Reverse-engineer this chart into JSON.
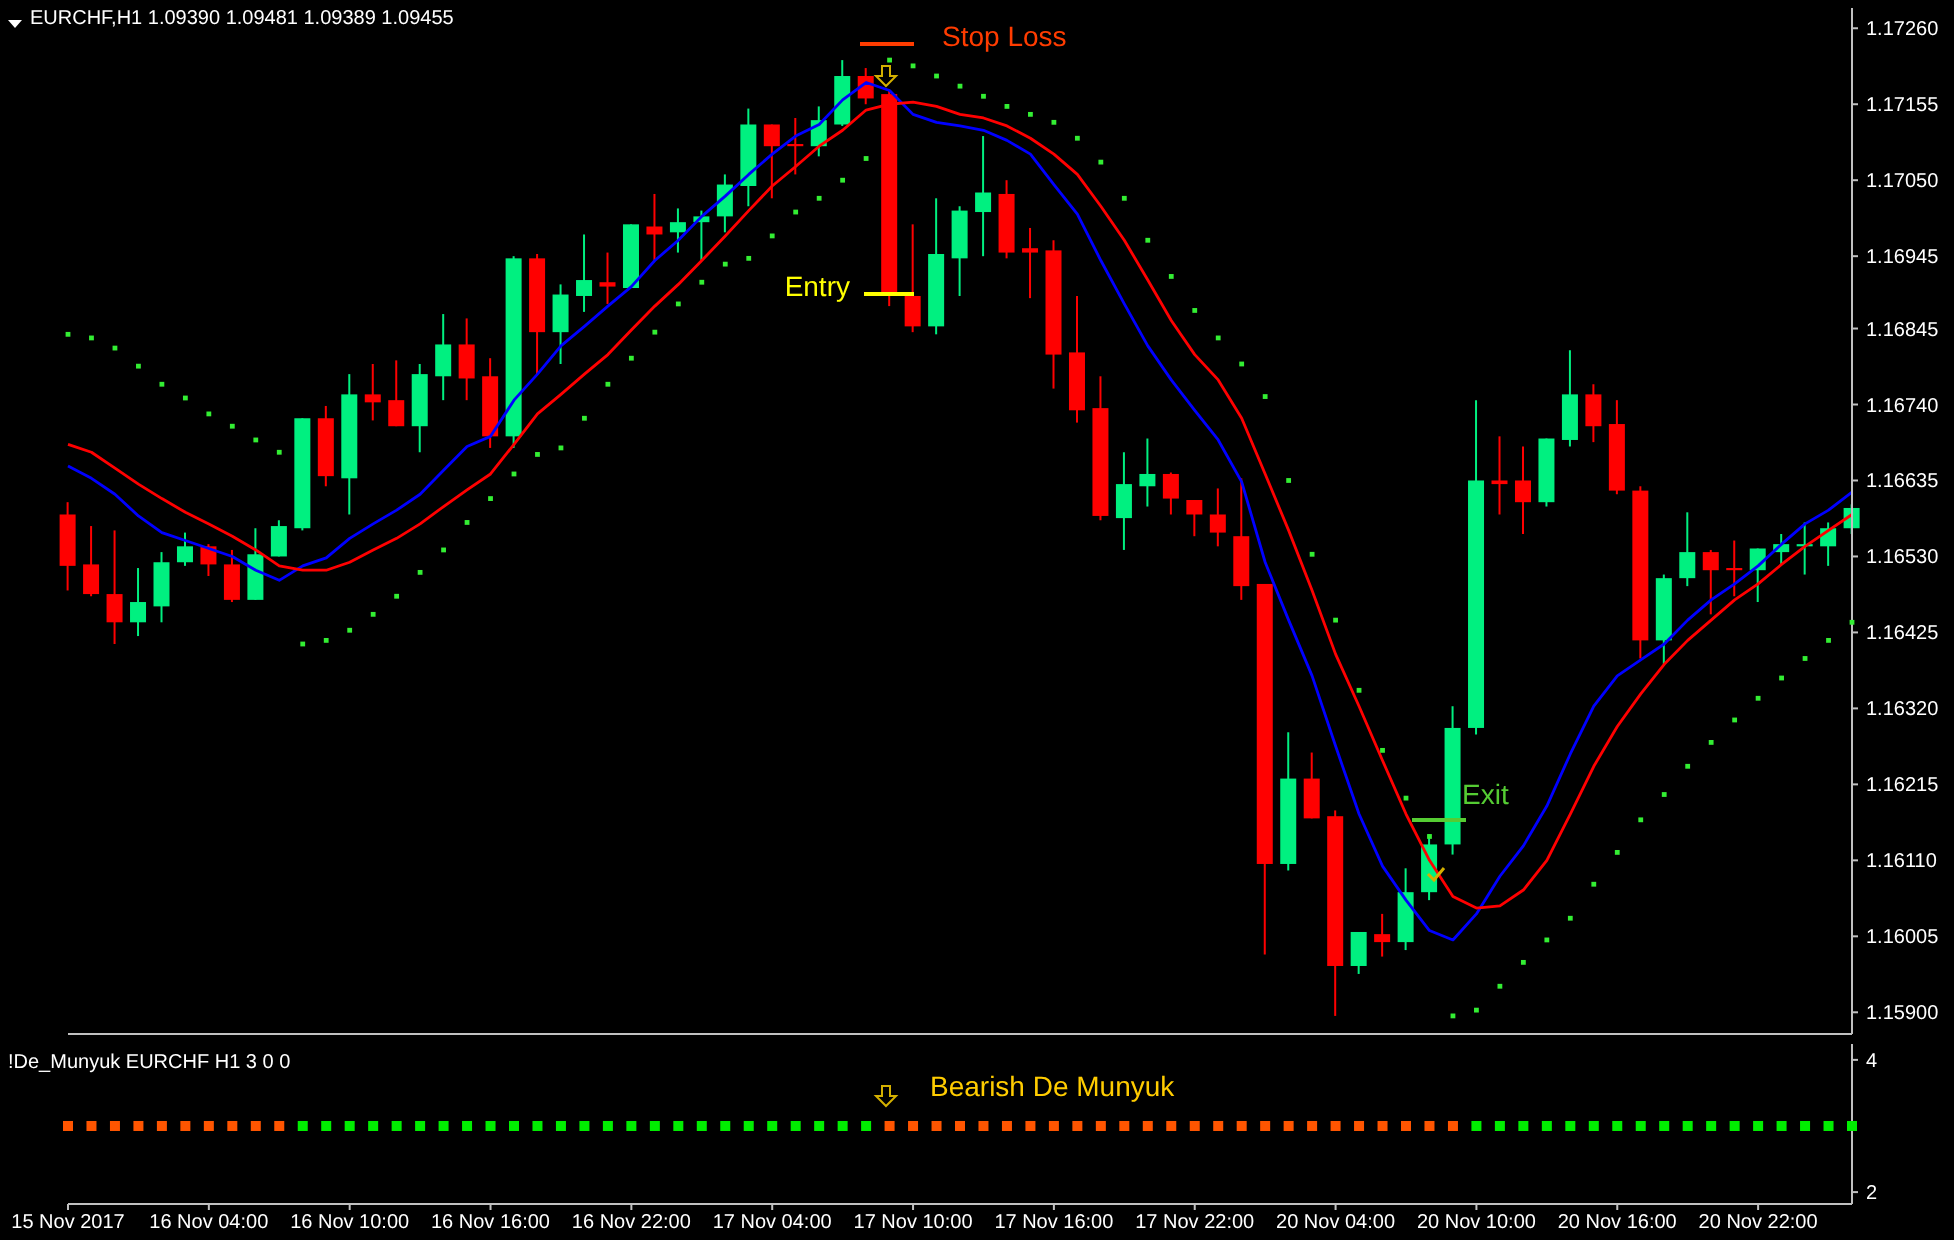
{
  "chart_data": [
    {
      "type": "candlestick",
      "title": "EURCHF,H1  1.09390 1.09481 1.09389 1.09455",
      "categories": [
        null,
        null,
        null,
        null,
        null,
        null,
        null,
        null,
        null,
        null,
        null,
        null,
        null,
        null,
        null,
        null,
        null,
        null,
        null,
        null,
        null,
        null,
        null,
        null,
        null,
        null,
        null,
        null,
        null,
        null,
        null,
        null,
        null,
        null,
        null,
        null,
        null,
        null,
        null,
        null,
        null,
        null,
        null,
        null,
        null,
        null,
        null,
        null,
        null,
        null,
        null,
        null,
        null,
        null,
        null,
        null,
        null,
        null,
        null,
        null,
        null,
        null,
        null,
        null,
        null,
        null,
        null,
        null,
        null,
        null,
        null,
        null,
        null,
        null,
        null,
        null,
        null
      ],
      "ohlc": [
        [
          1.16588,
          1.16605,
          1.16483,
          1.16517
        ],
        [
          1.16519,
          1.16572,
          1.16475,
          1.16478
        ],
        [
          1.16478,
          1.16566,
          1.16409,
          1.16439
        ],
        [
          1.16439,
          1.16514,
          1.1642,
          1.16467
        ],
        [
          1.16461,
          1.16536,
          1.16439,
          1.16522
        ],
        [
          1.16522,
          1.16563,
          1.16517,
          1.16544
        ],
        [
          1.16544,
          1.16547,
          1.16503,
          1.16519
        ],
        [
          1.16519,
          1.16539,
          1.16467,
          1.1647
        ],
        [
          1.1647,
          1.16569,
          1.1647,
          1.16533
        ],
        [
          1.1653,
          1.1658,
          1.1653,
          1.16572
        ],
        [
          1.16569,
          1.16721,
          1.16566,
          1.16721
        ],
        [
          1.16721,
          1.16738,
          1.16627,
          1.16641
        ],
        [
          1.16638,
          1.16782,
          1.16588,
          1.16754
        ],
        [
          1.16754,
          1.16796,
          1.16718,
          1.16743
        ],
        [
          1.16746,
          1.16801,
          1.1671,
          1.1671
        ],
        [
          1.1671,
          1.16796,
          1.16674,
          1.16782
        ],
        [
          1.16779,
          1.16865,
          1.16746,
          1.16823
        ],
        [
          1.16823,
          1.16859,
          1.16746,
          1.16776
        ],
        [
          1.16779,
          1.16804,
          1.1668,
          1.16696
        ],
        [
          1.16696,
          1.16945,
          1.1668,
          1.16942
        ],
        [
          1.16942,
          1.16948,
          1.16782,
          1.1684
        ],
        [
          1.1684,
          1.16906,
          1.16796,
          1.16892
        ],
        [
          1.1689,
          1.16975,
          1.16868,
          1.16912
        ],
        [
          1.16909,
          1.1695,
          1.16879,
          1.16903
        ],
        [
          1.16901,
          1.16989,
          1.16901,
          1.16989
        ],
        [
          1.16986,
          1.17031,
          1.16939,
          1.16975
        ],
        [
          1.16978,
          1.17011,
          1.1695,
          1.16992
        ],
        [
          1.16992,
          1.17008,
          1.16939,
          1.17
        ],
        [
          1.17,
          1.17058,
          1.16978,
          1.17044
        ],
        [
          1.17042,
          1.17149,
          1.17014,
          1.17127
        ],
        [
          1.17127,
          1.17127,
          1.17025,
          1.17097
        ],
        [
          1.171,
          1.17136,
          1.17058,
          1.17097
        ],
        [
          1.17097,
          1.17152,
          1.17083,
          1.17133
        ],
        [
          1.17127,
          1.17216,
          1.17125,
          1.17194
        ],
        [
          1.17194,
          1.17205,
          1.17155,
          1.17163
        ],
        [
          1.17169,
          1.17174,
          1.16876,
          1.1689
        ],
        [
          1.1689,
          1.16989,
          1.1684,
          1.16848
        ],
        [
          1.16848,
          1.17025,
          1.16837,
          1.16948
        ],
        [
          1.16942,
          1.17014,
          1.1689,
          1.17008
        ],
        [
          1.17006,
          1.17111,
          1.16945,
          1.17033
        ],
        [
          1.17031,
          1.1705,
          1.16942,
          1.1695
        ],
        [
          1.16956,
          1.16984,
          1.16887,
          1.1695
        ],
        [
          1.16953,
          1.16967,
          1.16762,
          1.16809
        ],
        [
          1.16812,
          1.1689,
          1.16715,
          1.16732
        ],
        [
          1.16735,
          1.16779,
          1.1658,
          1.16586
        ],
        [
          1.16583,
          1.16674,
          1.16539,
          1.1663
        ],
        [
          1.16627,
          1.16693,
          1.16599,
          1.16644
        ],
        [
          1.16644,
          1.16646,
          1.16588,
          1.1661
        ],
        [
          1.16608,
          1.16608,
          1.16558,
          1.16588
        ],
        [
          1.16588,
          1.16624,
          1.16544,
          1.16563
        ],
        [
          1.16558,
          1.16638,
          1.1647,
          1.16489
        ],
        [
          1.16492,
          1.16492,
          1.1598,
          1.16105
        ],
        [
          1.16105,
          1.16287,
          1.16096,
          1.16223
        ],
        [
          1.16223,
          1.16259,
          1.16168,
          1.16168
        ],
        [
          1.16171,
          1.16179,
          1.15895,
          1.15964
        ],
        [
          1.15964,
          1.16011,
          1.15953,
          1.16011
        ],
        [
          1.16008,
          1.16036,
          1.15977,
          1.15997
        ],
        [
          1.15997,
          1.16099,
          1.15986,
          1.16066
        ],
        [
          1.16066,
          1.16146,
          1.16055,
          1.16132
        ],
        [
          1.16132,
          1.16323,
          1.16118,
          1.16293
        ],
        [
          1.16293,
          1.16746,
          1.16284,
          1.16635
        ],
        [
          1.16635,
          1.16696,
          1.16588,
          1.1663
        ],
        [
          1.16635,
          1.16682,
          1.16561,
          1.16605
        ],
        [
          1.16605,
          1.16693,
          1.16599,
          1.16693
        ],
        [
          1.16691,
          1.16815,
          1.16682,
          1.16754
        ],
        [
          1.16754,
          1.16768,
          1.16688,
          1.1671
        ],
        [
          1.16713,
          1.16746,
          1.16616,
          1.16621
        ],
        [
          1.16621,
          1.16627,
          1.16389,
          1.16414
        ],
        [
          1.16414,
          1.16505,
          1.16381,
          1.165
        ],
        [
          1.165,
          1.16591,
          1.16489,
          1.16536
        ],
        [
          1.16536,
          1.16539,
          1.1645,
          1.16511
        ],
        [
          1.16514,
          1.16552,
          1.16475,
          1.16511
        ],
        [
          1.16511,
          1.16541,
          1.16467,
          1.16541
        ],
        [
          1.16536,
          1.16561,
          1.16519,
          1.16547
        ],
        [
          1.16544,
          1.16577,
          1.16505,
          1.16547
        ],
        [
          1.16544,
          1.16577,
          1.16517,
          1.16569
        ],
        [
          1.16569,
          1.16602,
          1.16561,
          1.16597
        ]
      ],
      "colors": [
        "#ff0000",
        "#ff0000",
        "#ff0000",
        "#00f080",
        "#00f080",
        "#00f080",
        "#ff0000",
        "#ff0000",
        "#00f080",
        "#00f080",
        "#00f080",
        "#ff0000",
        "#00f080",
        "#ff0000",
        "#ff0000",
        "#00f080",
        "#00f080",
        "#ff0000",
        "#ff0000",
        "#00f080",
        "#ff0000",
        "#00f080",
        "#00f080",
        "#ff0000",
        "#00f080",
        "#ff0000",
        "#00f080",
        "#00f080",
        "#00f080",
        "#00f080",
        "#ff0000",
        "#ff0000",
        "#00f080",
        "#00f080",
        "#ff0000",
        "#ff0000",
        "#ff0000",
        "#00f080",
        "#00f080",
        "#00f080",
        "#ff0000",
        "#ff0000",
        "#ff0000",
        "#ff0000",
        "#ff0000",
        "#00f080",
        "#00f080",
        "#ff0000",
        "#ff0000",
        "#ff0000",
        "#ff0000",
        "#ff0000",
        "#00f080",
        "#ff0000",
        "#ff0000",
        "#00f080",
        "#ff0000",
        "#00f080",
        "#00f080",
        "#00f080",
        "#00f080",
        "#ff0000",
        "#ff0000",
        "#00f080",
        "#00f080",
        "#ff0000",
        "#ff0000",
        "#ff0000",
        "#00f080",
        "#00f080",
        "#ff0000",
        "#ff0000",
        "#00f080",
        "#00f080",
        "#00f080",
        "#00f080",
        "#00f080"
      ],
      "series": [
        {
          "type": "line",
          "color": "#0000ff",
          "values": [
            1.16655,
            1.16638,
            1.16616,
            1.16586,
            1.16563,
            1.16552,
            1.16541,
            1.1653,
            1.16511,
            1.16497,
            1.16517,
            1.16528,
            1.16555,
            1.16575,
            1.16594,
            1.16616,
            1.16649,
            1.16682,
            1.16696,
            1.16746,
            1.16782,
            1.16821,
            1.16848,
            1.16876,
            1.16903,
            1.16939,
            1.16967,
            1.17,
            1.17028,
            1.17058,
            1.17086,
            1.17111,
            1.17127,
            1.17161,
            1.17185,
            1.17174,
            1.17141,
            1.1713,
            1.17125,
            1.17119,
            1.17105,
            1.17086,
            1.17044,
            1.17003,
            1.16939,
            1.16879,
            1.16821,
            1.16774,
            1.16732,
            1.16691,
            1.16633,
            1.16522,
            1.16442,
            1.16365,
            1.16268,
            1.16174,
            1.16102,
            1.16055,
            1.16013,
            1.16,
            1.16036,
            1.16088,
            1.1613,
            1.16185,
            1.16257,
            1.16323,
            1.16365,
            1.16387,
            1.16409,
            1.16442,
            1.1647,
            1.16492,
            1.16517,
            1.16547,
            1.16575,
            1.16594,
            1.16619
          ]
        },
        {
          "type": "line",
          "color": "#ff0000",
          "values": [
            1.16685,
            1.16674,
            1.16652,
            1.1663,
            1.1661,
            1.16591,
            1.16575,
            1.16558,
            1.16539,
            1.16517,
            1.16511,
            1.16511,
            1.16522,
            1.16539,
            1.16555,
            1.16575,
            1.16599,
            1.16622,
            1.16644,
            1.16685,
            1.16727,
            1.16754,
            1.16782,
            1.16809,
            1.16843,
            1.16876,
            1.16906,
            1.16939,
            1.16973,
            1.17008,
            1.17042,
            1.17069,
            1.17097,
            1.17119,
            1.17147,
            1.17155,
            1.17158,
            1.17152,
            1.17141,
            1.17136,
            1.17125,
            1.17108,
            1.17086,
            1.17058,
            1.17014,
            1.16967,
            1.16912,
            1.16856,
            1.16809,
            1.16774,
            1.16721,
            1.16644,
            1.16566,
            1.16483,
            1.16395,
            1.16323,
            1.16248,
            1.16174,
            1.1611,
            1.1606,
            1.16044,
            1.16047,
            1.16069,
            1.1611,
            1.16174,
            1.1624,
            1.16295,
            1.1634,
            1.16381,
            1.16414,
            1.16442,
            1.1647,
            1.16492,
            1.16519,
            1.16544,
            1.16566,
            1.16588
          ]
        },
        {
          "type": "scatter",
          "color": "#33ee33",
          "values": [
            1.16837,
            1.16832,
            1.16818,
            1.16793,
            1.16768,
            1.16749,
            1.16727,
            1.1671,
            1.16691,
            1.16674,
            1.16409,
            1.16414,
            1.16428,
            1.1645,
            1.16475,
            1.16508,
            1.16539,
            1.16577,
            1.1661,
            1.16644,
            1.16671,
            1.1668,
            1.16721,
            1.16768,
            1.16804,
            1.1684,
            1.16879,
            1.16909,
            1.16934,
            1.16942,
            1.16973,
            1.17006,
            1.17025,
            1.1705,
            1.1708,
            1.17216,
            1.17208,
            1.17194,
            1.1718,
            1.17166,
            1.17152,
            1.17141,
            1.1713,
            1.17108,
            1.17075,
            1.17025,
            1.16967,
            1.16917,
            1.1687,
            1.16832,
            1.16796,
            1.16751,
            1.16635,
            1.16533,
            1.16442,
            1.16345,
            1.16262,
            1.16196,
            1.16143,
            1.15895,
            1.15903,
            1.15936,
            1.15969,
            1.16,
            1.1603,
            1.16077,
            1.16121,
            1.16166,
            1.16201,
            1.1624,
            1.16273,
            1.16304,
            1.16334,
            1.16362,
            1.16389,
            1.16414,
            1.16439
          ]
        }
      ],
      "ylim": [
        1.1587,
        1.17288
      ],
      "yticks": [
        {
          "value": 1.1726,
          "label": "1.17260"
        },
        {
          "value": 1.17155,
          "label": "1.17155"
        },
        {
          "value": 1.1705,
          "label": "1.17050"
        },
        {
          "value": 1.16945,
          "label": "1.16945"
        },
        {
          "value": 1.16845,
          "label": "1.16845"
        },
        {
          "value": 1.1674,
          "label": "1.16740"
        },
        {
          "value": 1.16635,
          "label": "1.16635"
        },
        {
          "value": 1.1653,
          "label": "1.16530"
        },
        {
          "value": 1.16425,
          "label": "1.16425"
        },
        {
          "value": 1.1632,
          "label": "1.16320"
        },
        {
          "value": 1.16215,
          "label": "1.16215"
        },
        {
          "value": 1.1611,
          "label": "1.16110"
        },
        {
          "value": 1.16005,
          "label": "1.16005"
        },
        {
          "value": 1.159,
          "label": "1.15900"
        }
      ],
      "tick_labels": "y",
      "annotations": [
        "Stop Loss",
        "Entry",
        "Exit"
      ]
    },
    {
      "type": "scatter",
      "title": "!De_Munyuk EURCHF H1 3 0 0",
      "categories": [
        "15 Nov 2017",
        null,
        null,
        null,
        null,
        null,
        "16 Nov 04:00",
        null,
        null,
        null,
        null,
        null,
        "16 Nov 10:00",
        null,
        null,
        null,
        null,
        null,
        "16 Nov 16:00",
        null,
        null,
        null,
        null,
        null,
        "16 Nov 22:00",
        null,
        null,
        null,
        null,
        null,
        "17 Nov 04:00",
        null,
        null,
        null,
        null,
        null,
        "17 Nov 10:00",
        null,
        null,
        null,
        null,
        null,
        "17 Nov 16:00",
        null,
        null,
        null,
        null,
        null,
        "17 Nov 22:00",
        null,
        null,
        null,
        null,
        null,
        "20 Nov 04:00",
        null,
        null,
        null,
        null,
        null,
        "20 Nov 10:00",
        null,
        null,
        null,
        null,
        null,
        "20 Nov 16:00",
        null,
        null,
        null,
        null,
        null,
        "20 Nov 22:00",
        null,
        null,
        null,
        null
      ],
      "values": [
        3,
        3,
        3,
        3,
        3,
        3,
        3,
        3,
        3,
        3,
        3,
        3,
        3,
        3,
        3,
        3,
        3,
        3,
        3,
        3,
        3,
        3,
        3,
        3,
        3,
        3,
        3,
        3,
        3,
        3,
        3,
        3,
        3,
        3,
        3,
        3,
        3,
        3,
        3,
        3,
        3,
        3,
        3,
        3,
        3,
        3,
        3,
        3,
        3,
        3,
        3,
        3,
        3,
        3,
        3,
        3,
        3,
        3,
        3,
        3,
        3,
        3,
        3,
        3,
        3,
        3,
        3,
        3,
        3,
        3,
        3,
        3,
        3,
        3,
        3,
        3,
        3
      ],
      "colors": [
        "#ff5500",
        "#ff5500",
        "#ff5500",
        "#ff5500",
        "#ff5500",
        "#ff5500",
        "#ff5500",
        "#ff5500",
        "#ff5500",
        "#ff5500",
        "#00ee00",
        "#00ee00",
        "#00ee00",
        "#00ee00",
        "#00ee00",
        "#00ee00",
        "#00ee00",
        "#00ee00",
        "#00ee00",
        "#00ee00",
        "#00ee00",
        "#00ee00",
        "#00ee00",
        "#00ee00",
        "#00ee00",
        "#00ee00",
        "#00ee00",
        "#00ee00",
        "#00ee00",
        "#00ee00",
        "#00ee00",
        "#00ee00",
        "#00ee00",
        "#00ee00",
        "#00ee00",
        "#ff5500",
        "#ff5500",
        "#ff5500",
        "#ff5500",
        "#ff5500",
        "#ff5500",
        "#ff5500",
        "#ff5500",
        "#ff5500",
        "#ff5500",
        "#ff5500",
        "#ff5500",
        "#ff5500",
        "#ff5500",
        "#ff5500",
        "#ff5500",
        "#ff5500",
        "#ff5500",
        "#ff5500",
        "#ff5500",
        "#ff5500",
        "#ff5500",
        "#ff5500",
        "#ff5500",
        "#ff5500",
        "#00ee00",
        "#00ee00",
        "#00ee00",
        "#00ee00",
        "#00ee00",
        "#00ee00",
        "#00ee00",
        "#00ee00",
        "#00ee00",
        "#00ee00",
        "#00ee00",
        "#00ee00",
        "#00ee00",
        "#00ee00",
        "#00ee00",
        "#00ee00",
        "#00ee00"
      ],
      "marker": "square",
      "ylim": [
        1.82,
        4.24
      ],
      "yticks": [
        2,
        4
      ],
      "annotations": [
        "Bearish De Munyuk"
      ]
    }
  ]
}
